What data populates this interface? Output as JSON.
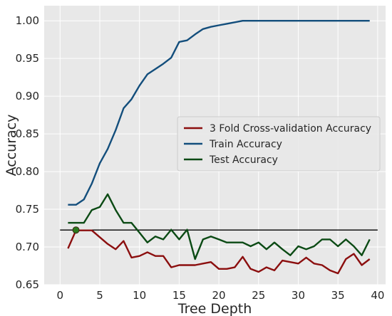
{
  "chart_data": {
    "type": "line",
    "title": "",
    "xlabel": "Tree Depth",
    "ylabel": "Accuracy",
    "xlim": [
      -2,
      41
    ],
    "ylim": [
      0.65,
      1.02
    ],
    "xticks": [
      "0",
      "5",
      "10",
      "15",
      "20",
      "25",
      "30",
      "35",
      "40"
    ],
    "yticks": [
      "0.65",
      "0.70",
      "0.75",
      "0.80",
      "0.85",
      "0.90",
      "0.95",
      "1.00"
    ],
    "grid": true,
    "legend_position": "center-right",
    "x": [
      1,
      2,
      3,
      4,
      5,
      6,
      7,
      8,
      9,
      10,
      11,
      12,
      13,
      14,
      15,
      16,
      17,
      18,
      19,
      20,
      21,
      22,
      23,
      24,
      25,
      26,
      27,
      28,
      29,
      30,
      31,
      32,
      33,
      34,
      35,
      36,
      37,
      38,
      39
    ],
    "series": [
      {
        "name": "3 Fold Cross-validation Accuracy",
        "color": "#8b0e0e",
        "values": [
          0.698,
          0.722,
          0.722,
          0.722,
          0.713,
          0.704,
          0.697,
          0.708,
          0.686,
          0.688,
          0.693,
          0.688,
          0.688,
          0.673,
          0.676,
          0.676,
          0.676,
          0.678,
          0.68,
          0.671,
          0.671,
          0.673,
          0.687,
          0.671,
          0.667,
          0.673,
          0.669,
          0.682,
          0.68,
          0.678,
          0.686,
          0.678,
          0.676,
          0.669,
          0.665,
          0.684,
          0.691,
          0.676,
          0.684
        ]
      },
      {
        "name": "Train Accuracy",
        "color": "#134e7c",
        "values": [
          0.756,
          0.756,
          0.763,
          0.784,
          0.811,
          0.83,
          0.855,
          0.884,
          0.896,
          0.914,
          0.929,
          0.936,
          0.943,
          0.951,
          0.972,
          0.974,
          0.982,
          0.989,
          0.992,
          0.994,
          0.996,
          0.998,
          1.0,
          1.0,
          1.0,
          1.0,
          1.0,
          1.0,
          1.0,
          1.0,
          1.0,
          1.0,
          1.0,
          1.0,
          1.0,
          1.0,
          1.0,
          1.0,
          1.0
        ]
      },
      {
        "name": "Test Accuracy",
        "color": "#0b4a14",
        "values": [
          0.732,
          0.732,
          0.732,
          0.749,
          0.753,
          0.77,
          0.749,
          0.732,
          0.732,
          0.719,
          0.706,
          0.714,
          0.71,
          0.723,
          0.71,
          0.723,
          0.684,
          0.71,
          0.714,
          0.71,
          0.706,
          0.706,
          0.706,
          0.701,
          0.706,
          0.697,
          0.706,
          0.697,
          0.689,
          0.701,
          0.697,
          0.701,
          0.71,
          0.71,
          0.701,
          0.71,
          0.701,
          0.689,
          0.71
        ]
      }
    ],
    "reference_line": {
      "y": 0.7225,
      "x_range": [
        0,
        40
      ],
      "color": "#000000"
    },
    "highlight_point": {
      "x": 2,
      "y": 0.7225,
      "color": "#2a7a1e"
    }
  }
}
